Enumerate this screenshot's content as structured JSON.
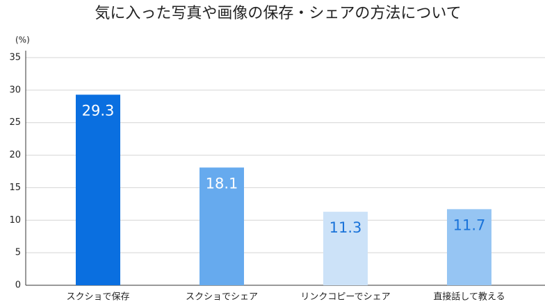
{
  "chart_data": {
    "type": "bar",
    "title": "気に入った写真や画像の保存・シェアの方法について",
    "y_unit": "(%)",
    "categories": [
      "スクショで保存",
      "スクショでシェア",
      "リンクコピーでシェア",
      "直接話して教える"
    ],
    "values": [
      29.3,
      18.1,
      11.3,
      11.7
    ],
    "colors": [
      "#0a6fe0",
      "#66aaee",
      "#cce2f8",
      "#96c5f3"
    ],
    "label_colors": [
      "#ffffff",
      "#ffffff",
      "#1a73d9",
      "#1a73d9"
    ],
    "ylim": [
      0,
      35
    ],
    "yticks": [
      0,
      5,
      10,
      15,
      20,
      25,
      30,
      35
    ],
    "grid": true
  }
}
